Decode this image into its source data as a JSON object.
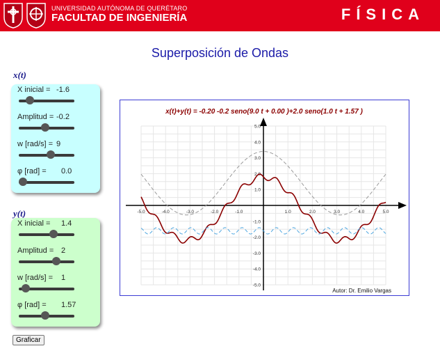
{
  "header": {
    "university": "UNIVERSIDAD AUTÓNOMA DE QUERÉTARO",
    "faculty": "FACULTAD DE INGENIERÍA",
    "brand": "FÍSICA"
  },
  "page_title": "Superposición de Ondas",
  "x_section": {
    "label": "x(t)",
    "controls": [
      {
        "label": "X inicial =",
        "value": "-1.6",
        "fraction": 0.2
      },
      {
        "label": "Amplitud =",
        "value": "-0.2",
        "fraction": 0.48
      },
      {
        "label": "w [rad/s] =",
        "value": "9",
        "fraction": 0.58
      },
      {
        "label": "φ [rad] =",
        "value": "0.0",
        "fraction": 0.08
      }
    ]
  },
  "y_section": {
    "label": "y(t)",
    "controls": [
      {
        "label": "X inicial =",
        "value": "1.4",
        "fraction": 0.63
      },
      {
        "label": "Amplitud =",
        "value": "2",
        "fraction": 0.67
      },
      {
        "label": "w [rad/s] =",
        "value": "1",
        "fraction": 0.13
      },
      {
        "label": "φ [rad] =",
        "value": "1.57",
        "fraction": 0.48
      }
    ]
  },
  "graph_button": "Graficar",
  "plot": {
    "equation": "x(t)+y(t) = -0.20  -0.2 seno(9.0  t  + 0.00 )+2.0 seno(1.0  t  + 1.57 )",
    "author": "Autor: Dr. Emilio Vargas"
  },
  "chart_data": {
    "type": "line",
    "xlim": [
      -5.0,
      5.0
    ],
    "ylim": [
      -5.0,
      5.0
    ],
    "x_ticks": [
      "-5.0",
      "-4.0",
      "-3.0",
      "-2.0",
      "-1.0",
      "1.0",
      "2.0",
      "3.0",
      "4.0",
      "5.0"
    ],
    "y_ticks": [
      "5.0",
      "4.0",
      "3.0",
      "2.0",
      "1.0",
      "-1.0",
      "-2.0",
      "-3.0",
      "-4.0",
      "-5.0"
    ],
    "grid": true,
    "series": [
      {
        "role": "sum",
        "color": "#8b0000",
        "style": "solid",
        "x0": -0.2,
        "amp1": -0.2,
        "w1": 9.0,
        "phi1": 0.0,
        "amp2": 2.0,
        "w2": 1.0,
        "phi2": 1.57
      },
      {
        "role": "x",
        "color": "#4da6e0",
        "style": "dashed",
        "x0": -1.6,
        "amp": -0.2,
        "w": 9.0,
        "phi": 0.0
      },
      {
        "role": "y",
        "color": "#999999",
        "style": "dashed",
        "x0": 1.4,
        "amp": 2.0,
        "w": 1.0,
        "phi": 1.57
      }
    ]
  }
}
